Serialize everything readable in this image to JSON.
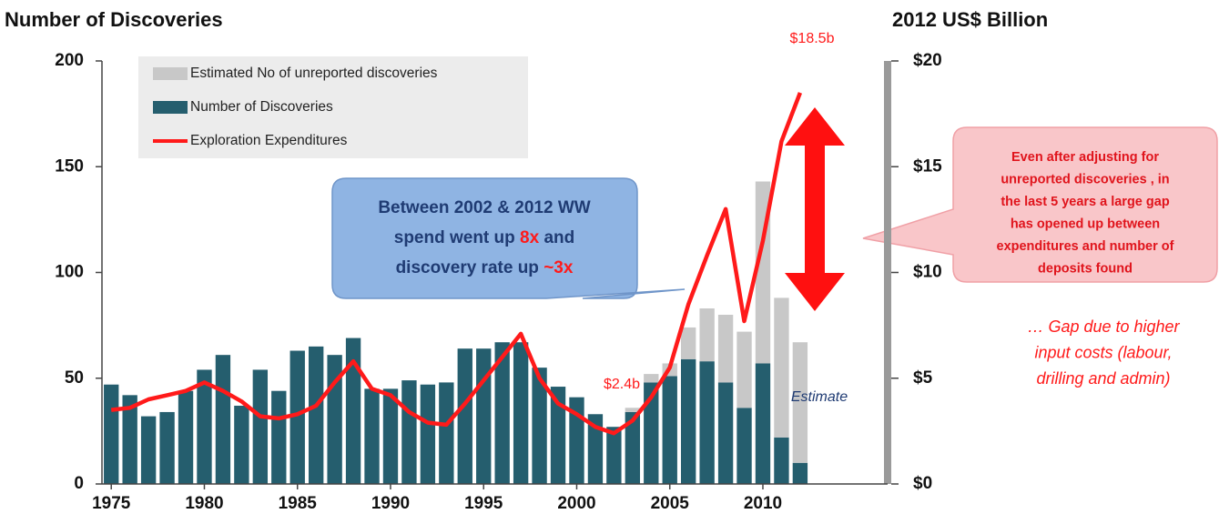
{
  "chart_data": {
    "type": "bar",
    "y_title": "Number of Discoveries",
    "y2_title": "2012 US$ Billion",
    "x": [
      1975,
      1976,
      1977,
      1978,
      1979,
      1980,
      1981,
      1982,
      1983,
      1984,
      1985,
      1986,
      1987,
      1988,
      1989,
      1990,
      1991,
      1992,
      1993,
      1994,
      1995,
      1996,
      1997,
      1998,
      1999,
      2000,
      2001,
      2002,
      2003,
      2004,
      2005,
      2006,
      2007,
      2008,
      2009,
      2010,
      2011,
      2012
    ],
    "series": [
      {
        "name": "Estimated No of unreported discoveries",
        "color": "#c8c8c8",
        "type": "bar",
        "stacked_on": 1,
        "values": [
          null,
          null,
          null,
          null,
          null,
          null,
          null,
          null,
          null,
          null,
          null,
          null,
          null,
          null,
          null,
          null,
          null,
          null,
          null,
          null,
          null,
          null,
          null,
          null,
          null,
          null,
          null,
          null,
          2,
          4,
          6,
          15,
          25,
          32,
          36,
          86,
          66,
          57
        ]
      },
      {
        "name": "Number of Discoveries",
        "color": "#255e6e",
        "type": "bar",
        "values": [
          47,
          42,
          32,
          34,
          44,
          54,
          61,
          37,
          54,
          44,
          63,
          65,
          61,
          69,
          45,
          45,
          49,
          47,
          48,
          64,
          64,
          67,
          67,
          55,
          46,
          41,
          33,
          27,
          34,
          48,
          51,
          59,
          58,
          48,
          36,
          57,
          22,
          10
        ]
      },
      {
        "name": "Exploration Expenditures",
        "color": "#ff1a1a",
        "type": "line",
        "axis": "y2",
        "values": [
          3.5,
          3.6,
          4.0,
          4.2,
          4.4,
          4.8,
          4.4,
          3.9,
          3.2,
          3.1,
          3.3,
          3.7,
          4.8,
          5.8,
          4.5,
          4.2,
          3.4,
          2.9,
          2.8,
          3.8,
          4.9,
          6.0,
          7.1,
          5.0,
          3.8,
          3.3,
          2.7,
          2.4,
          3.0,
          4.1,
          5.5,
          8.5,
          10.8,
          13.0,
          7.7,
          11.5,
          16.2,
          18.5
        ]
      }
    ],
    "xlim": [
      1974.5,
      2016.7
    ],
    "xticks": [
      1975,
      1980,
      1985,
      1990,
      1995,
      2000,
      2005,
      2010
    ],
    "ylim": [
      0,
      200
    ],
    "yticks": [
      0,
      50,
      100,
      150,
      200
    ],
    "y2lim": [
      0,
      20
    ],
    "y2ticks": [
      {
        "value": 0,
        "label": "$0"
      },
      {
        "value": 5,
        "label": "$5"
      },
      {
        "value": 10,
        "label": "$10"
      },
      {
        "value": 15,
        "label": "$15"
      },
      {
        "value": 20,
        "label": "$20"
      }
    ],
    "annotations": {
      "peak_label": "$18.5b",
      "low_label": "$2.4b",
      "estimate_label": "Estimate",
      "blue_callout": [
        [
          "Between 2002 & 2012 WW"
        ],
        [
          "spend went up ",
          "8x",
          " and"
        ],
        [
          "discovery rate up  ",
          "~3x"
        ]
      ],
      "pink_callout": [
        "Even after adjusting for",
        "unreported discoveries , in",
        "the last 5 years  a large gap",
        "has opened up between",
        "expenditures and number of",
        "deposits found"
      ],
      "gap_note": [
        "… Gap due to higher",
        "input costs (labour,",
        "drilling and admin)"
      ]
    }
  }
}
